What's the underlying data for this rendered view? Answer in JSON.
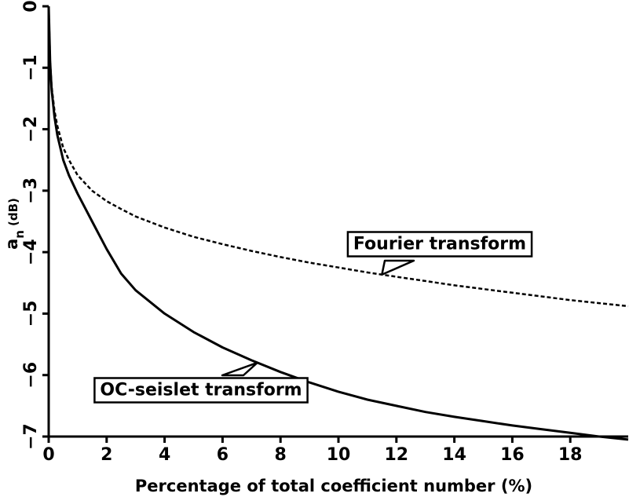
{
  "chart_data": {
    "type": "line",
    "title": "",
    "xlabel": "Percentage of total coefficient number (%)",
    "ylabel": {
      "base": "a",
      "subscript": "n",
      "unit": "(dB)"
    },
    "xlim": [
      0,
      20
    ],
    "ylim": [
      -7,
      0
    ],
    "xticks": [
      0,
      2,
      4,
      6,
      8,
      10,
      12,
      14,
      16,
      18
    ],
    "xtick_labels": [
      "0",
      "2",
      "4",
      "6",
      "8",
      "10",
      "12",
      "14",
      "16",
      "18"
    ],
    "yticks": [
      0,
      -1,
      -2,
      -3,
      -4,
      -5,
      -6,
      -7
    ],
    "ytick_labels": [
      "0",
      "−1",
      "−2",
      "−3",
      "−4",
      "−5",
      "−6",
      "−7"
    ],
    "grid": false,
    "legend": "none",
    "series": [
      {
        "name": "Fourier transform",
        "style": "dashed",
        "color": "#000000",
        "x": [
          0,
          0.05,
          0.1,
          0.2,
          0.3,
          0.5,
          0.7,
          1.0,
          1.5,
          2,
          2.5,
          3,
          4,
          5,
          6,
          7,
          8,
          9,
          10,
          11,
          12,
          13,
          14,
          15,
          16,
          17,
          18,
          19,
          20
        ],
        "y": [
          0,
          -0.9,
          -1.3,
          -1.7,
          -1.95,
          -2.3,
          -2.5,
          -2.75,
          -3.0,
          -3.17,
          -3.3,
          -3.42,
          -3.6,
          -3.75,
          -3.87,
          -3.98,
          -4.08,
          -4.17,
          -4.25,
          -4.33,
          -4.4,
          -4.47,
          -4.54,
          -4.6,
          -4.66,
          -4.72,
          -4.78,
          -4.83,
          -4.88
        ]
      },
      {
        "name": "OC-seislet transform",
        "style": "solid",
        "color": "#000000",
        "x": [
          0,
          0.05,
          0.1,
          0.2,
          0.3,
          0.5,
          0.7,
          1.0,
          1.5,
          2,
          2.5,
          3,
          4,
          5,
          6,
          7,
          8,
          9,
          10,
          11,
          12,
          13,
          14,
          15,
          16,
          17,
          18,
          19,
          20
        ],
        "y": [
          0,
          -0.9,
          -1.35,
          -1.8,
          -2.1,
          -2.5,
          -2.75,
          -3.05,
          -3.5,
          -3.95,
          -4.35,
          -4.62,
          -5.0,
          -5.3,
          -5.55,
          -5.76,
          -5.95,
          -6.12,
          -6.27,
          -6.4,
          -6.5,
          -6.6,
          -6.68,
          -6.75,
          -6.82,
          -6.88,
          -6.94,
          -7.0,
          -7.05
        ]
      }
    ],
    "annotations": [
      {
        "text": "Fourier transform",
        "series": "Fourier transform",
        "points_to_x": 11.5
      },
      {
        "text": "OC-seislet transform",
        "series": "OC-seislet transform",
        "points_to_x": 7.2
      }
    ]
  }
}
